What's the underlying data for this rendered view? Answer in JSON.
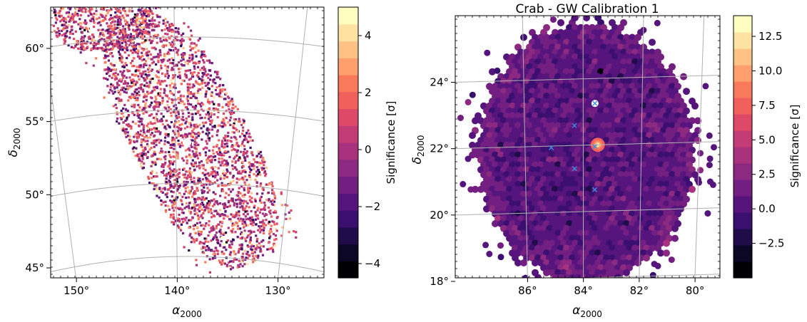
{
  "palette": [
    "#000004",
    "#0b0724",
    "#1f0c48",
    "#3b0f70",
    "#56147d",
    "#721f81",
    "#8c2981",
    "#a8327d",
    "#c43c75",
    "#de4968",
    "#f1605d",
    "#f9795d",
    "#fe9f6d",
    "#fec287",
    "#fde2a2",
    "#fcfdbf"
  ],
  "chart_data": [
    {
      "type": "heatmap",
      "title": "",
      "xlabel": "α",
      "xlabel_sub": "2000",
      "ylabel": "δ",
      "ylabel_sub": "2000",
      "x_ticks": [
        150,
        140,
        130
      ],
      "x_tick_labels": [
        "150°",
        "140°",
        "130°"
      ],
      "y_ticks": [
        45,
        50,
        55,
        60
      ],
      "y_tick_labels": [
        "45°",
        "50°",
        "55°",
        "60°"
      ],
      "xlim": [
        151,
        127
      ],
      "ylim": [
        44,
        62.5
      ],
      "grid": true,
      "colorbar": {
        "label": "Significance [σ]",
        "range": [
          -4.5,
          5
        ],
        "ticks": [
          4,
          2,
          0,
          -2,
          -4
        ],
        "tick_labels": [
          "4",
          "2",
          "0",
          "−2",
          "−4"
        ]
      },
      "regions": [
        {
          "ra": 145.5,
          "dec": 61.3,
          "w_ra": 8,
          "h_dec": 3.5,
          "angle": 0
        },
        {
          "ra": 138.8,
          "dec": 53.0,
          "w_ra": 9,
          "h_dec": 17,
          "angle": -28
        }
      ]
    },
    {
      "type": "heatmap",
      "title": "Crab - GW Calibration 1",
      "xlabel": "α",
      "xlabel_sub": "2000",
      "ylabel": "δ",
      "ylabel_sub": "2000",
      "x_ticks": [
        86,
        84,
        82,
        80
      ],
      "x_tick_labels": [
        "86°",
        "84°",
        "82°",
        "80°"
      ],
      "y_ticks": [
        18,
        20,
        22,
        24
      ],
      "y_tick_labels": [
        "18°",
        "20°",
        "22°",
        "24°"
      ],
      "xlim": [
        88.4,
        79.3
      ],
      "ylim": [
        18,
        25.9
      ],
      "grid": true,
      "colorbar": {
        "label": "Significance [σ]",
        "range": [
          -5,
          14
        ],
        "ticks": [
          12.5,
          10.0,
          7.5,
          5.0,
          2.5,
          0.0,
          -2.5
        ],
        "tick_labels": [
          "12.5",
          "10.0",
          "7.5",
          "5.0",
          "2.5",
          "0.0",
          "−2.5"
        ]
      },
      "source": {
        "ra": 83.5,
        "dec": 22.0
      },
      "markers": [
        {
          "ra": 84.3,
          "dec": 22.6
        },
        {
          "ra": 85.1,
          "dec": 21.95
        },
        {
          "ra": 83.6,
          "dec": 21.95
        },
        {
          "ra": 84.3,
          "dec": 21.3
        },
        {
          "ra": 83.6,
          "dec": 20.65
        },
        {
          "ra": 83.6,
          "dec": 23.25
        }
      ]
    }
  ]
}
